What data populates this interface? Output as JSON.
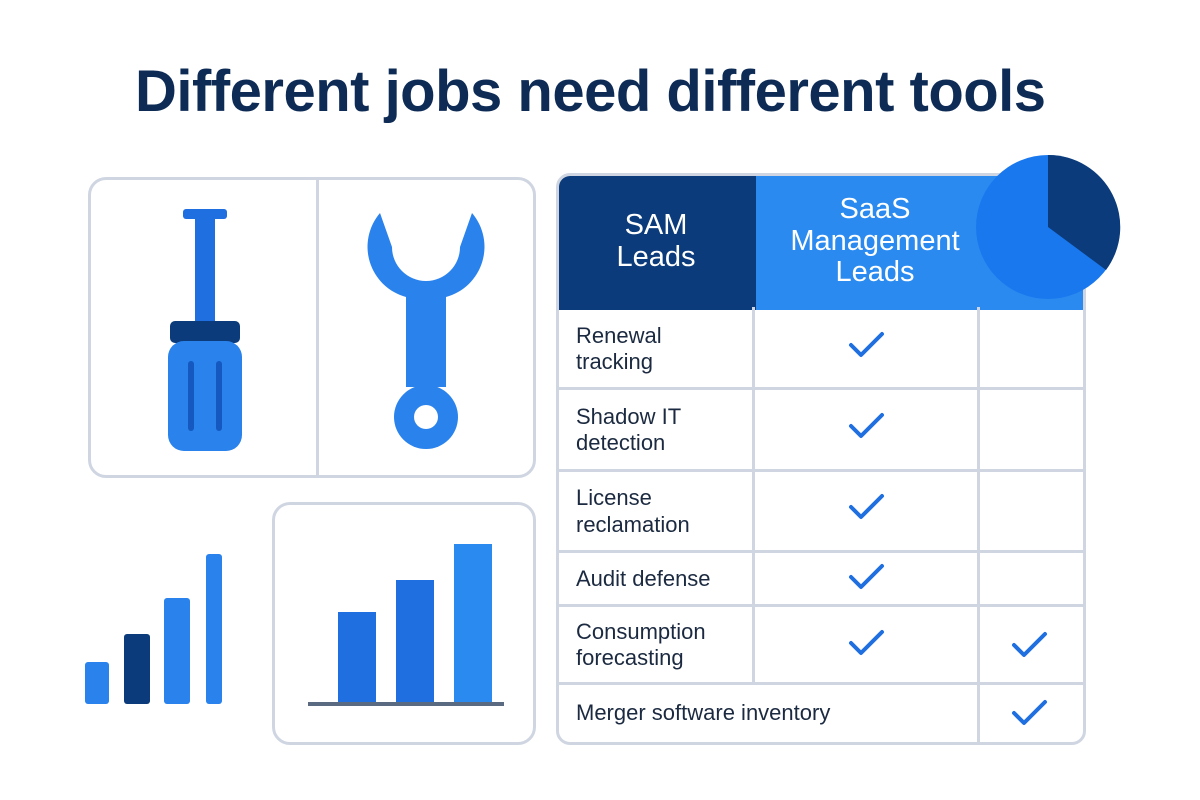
{
  "title": "Different jobs need different tools",
  "table": {
    "headers": [
      "SAM Leads",
      "SaaS Management Leads"
    ],
    "rows": [
      "Renewal tracking",
      "Shadow IT detection",
      "License reclamation",
      "Audit defense",
      "Consumption forecasting",
      "Merger software inventory"
    ]
  }
}
